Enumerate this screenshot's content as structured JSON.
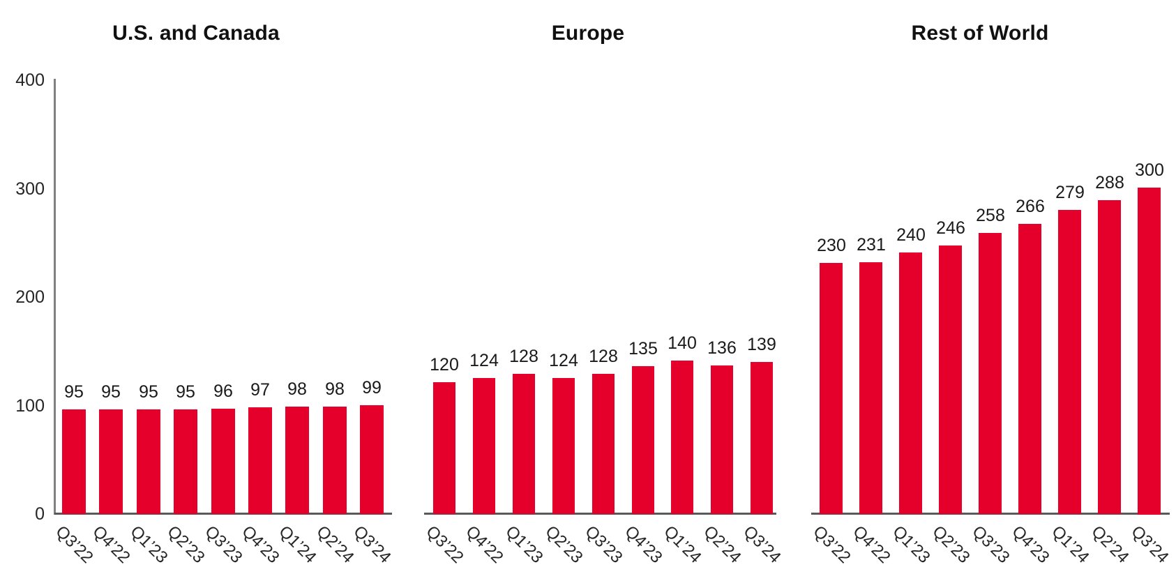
{
  "figure": {
    "background_color": "#ffffff",
    "bar_color": "#e4002b",
    "y_axis_line_color": "#808080",
    "baseline_color": "#595959",
    "text_color": "#262626"
  },
  "y_axis": {
    "ticks": [
      "0",
      "100",
      "200",
      "300",
      "400"
    ],
    "tick_values": [
      0,
      100,
      200,
      300,
      400
    ],
    "max": 400,
    "visible_on_first_chart_only": true
  },
  "chart_data": [
    {
      "type": "bar",
      "title": "U.S. and Canada",
      "categories": [
        "Q3’22",
        "Q4’22",
        "Q1’23",
        "Q2’23",
        "Q3’23",
        "Q4’23",
        "Q1’24",
        "Q2’24",
        "Q3’24"
      ],
      "values": [
        95,
        95,
        95,
        95,
        96,
        97,
        98,
        98,
        99
      ],
      "ylim": [
        0,
        400
      ],
      "y_axis_visible": true,
      "grid": false,
      "legend": false,
      "bar_color": "#e4002b"
    },
    {
      "type": "bar",
      "title": "Europe",
      "categories": [
        "Q3’22",
        "Q4’22",
        "Q1’23",
        "Q2’23",
        "Q3’23",
        "Q4’23",
        "Q1’24",
        "Q2’24",
        "Q3’24"
      ],
      "values": [
        120,
        124,
        128,
        124,
        128,
        135,
        140,
        136,
        139
      ],
      "ylim": [
        0,
        400
      ],
      "y_axis_visible": false,
      "grid": false,
      "legend": false,
      "bar_color": "#e4002b"
    },
    {
      "type": "bar",
      "title": "Rest of World",
      "categories": [
        "Q3’22",
        "Q4’22",
        "Q1’23",
        "Q2’23",
        "Q3’23",
        "Q4’23",
        "Q1’24",
        "Q2’24",
        "Q3’24"
      ],
      "values": [
        230,
        231,
        240,
        246,
        258,
        266,
        279,
        288,
        300
      ],
      "ylim": [
        0,
        400
      ],
      "y_axis_visible": false,
      "grid": false,
      "legend": false,
      "bar_color": "#e4002b"
    }
  ]
}
